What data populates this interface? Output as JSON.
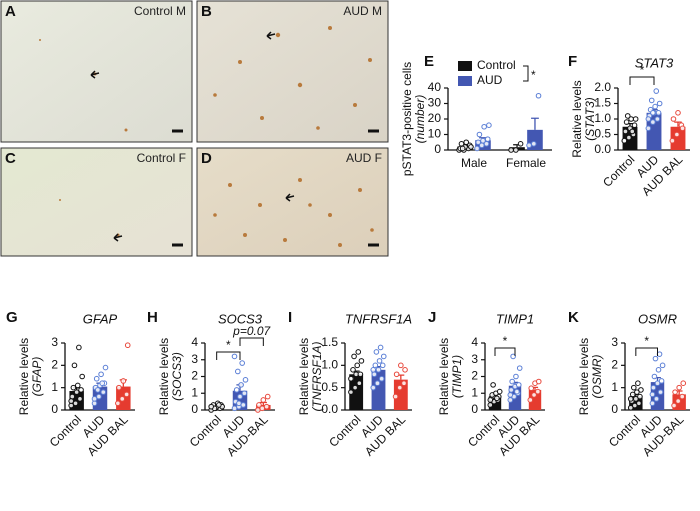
{
  "panels": [
    {
      "letter": "A",
      "label": "Control M"
    },
    {
      "letter": "B",
      "label": "AUD M"
    },
    {
      "letter": "C",
      "label": "Control F"
    },
    {
      "letter": "D",
      "label": "AUD F"
    }
  ],
  "chart_data": [
    {
      "type": "grouped_bar",
      "letter": "E",
      "ylabel": [
        "pSTAT3-positive cells",
        "(number)"
      ],
      "categories": [
        "Male",
        "Female"
      ],
      "annotations": [
        "*"
      ],
      "series": [
        {
          "name": "Control",
          "color": "#111111",
          "values": [
            2.2,
            1.8
          ],
          "errors": [
            0.8,
            1.6
          ],
          "points": [
            [
              0,
              0,
              1,
              1,
              2,
              3,
              4,
              5,
              2,
              1
            ],
            [
              0,
              0,
              4
            ]
          ]
        },
        {
          "name": "AUD",
          "color": "#4357b2",
          "values": [
            6.3,
            13
          ],
          "errors": [
            1.6,
            7.5
          ],
          "points": [
            [
              1,
              3,
              4,
              5,
              6,
              7,
              10,
              15,
              16
            ],
            [
              3,
              4,
              35
            ]
          ]
        }
      ],
      "ylim": [
        0,
        40
      ],
      "yticks": [
        0,
        10,
        20,
        30,
        40
      ]
    },
    {
      "type": "bar",
      "letter": "F",
      "title": "STAT3",
      "ylabel": [
        "Relative levels",
        "(STAT3)"
      ],
      "categories": [
        "Control",
        "AUD",
        "AUD BAL"
      ],
      "colors": [
        "#111111",
        "#4357b2",
        "#e53b2f"
      ],
      "values": [
        0.75,
        1.2,
        0.75
      ],
      "errors": [
        0.1,
        0.1,
        0.15
      ],
      "points": [
        [
          0.3,
          0.4,
          0.5,
          0.6,
          0.7,
          0.8,
          0.9,
          1.0,
          1.0,
          1.1,
          0.6,
          0.3
        ],
        [
          0.7,
          0.9,
          1.0,
          1.1,
          1.2,
          1.2,
          1.3,
          1.4,
          1.5,
          1.6,
          1.9,
          1.0,
          1.2
        ],
        [
          0.3,
          0.5,
          0.8,
          1.0,
          1.2,
          0.7
        ]
      ],
      "annotations": [
        "*"
      ],
      "ylim": [
        0,
        2
      ],
      "yticks": [
        {
          "value": 0,
          "label": "0.0"
        },
        0.5,
        {
          "value": 1,
          "label": "1.0"
        },
        1.5,
        {
          "value": 2,
          "label": "2.0"
        }
      ]
    },
    {
      "type": "bar",
      "letter": "G",
      "title": "GFAP",
      "ylabel": [
        "Relative levels",
        "(GFAP)"
      ],
      "categories": [
        "Control",
        "AUD",
        "AUD BAL"
      ],
      "colors": [
        "#111111",
        "#4357b2",
        "#e53b2f"
      ],
      "values": [
        0.85,
        1.05,
        1.05
      ],
      "errors": [
        0.15,
        0.15,
        0.3
      ],
      "points": [
        [
          0.2,
          0.3,
          0.5,
          0.6,
          0.8,
          0.9,
          1.0,
          1.1,
          1.5,
          2.0,
          2.8,
          0.4
        ],
        [
          0.3,
          0.6,
          0.8,
          1.0,
          1.1,
          1.2,
          1.4,
          1.6,
          1.9,
          0.9,
          1.2,
          0.5
        ],
        [
          0.3,
          0.5,
          0.7,
          1.0,
          1.3,
          2.9
        ]
      ],
      "annotations": [],
      "ylim": [
        0,
        3
      ],
      "yticks": [
        0,
        1,
        2,
        3
      ]
    },
    {
      "type": "bar",
      "letter": "H",
      "title": "SOCS3",
      "ylabel": [
        "Relative levels",
        "(SOCS3)"
      ],
      "categories": [
        "Control",
        "AUD",
        "AUD-BAL"
      ],
      "colors": [
        "#111111",
        "#4357b2",
        "#e53b2f"
      ],
      "values": [
        0.2,
        1.15,
        0.3
      ],
      "errors": [
        0.05,
        0.35,
        0.15
      ],
      "points": [
        [
          0,
          0.1,
          0.1,
          0.2,
          0.2,
          0.3,
          0.3,
          0.4,
          0.2,
          0.1,
          0.3,
          0.2
        ],
        [
          0.1,
          0.2,
          0.3,
          0.5,
          0.8,
          1.0,
          1.2,
          1.5,
          1.8,
          2.3,
          2.8,
          3.2,
          0.4
        ],
        [
          0,
          0.1,
          0.2,
          0.3,
          0.6,
          0.8
        ]
      ],
      "annotations": [
        "*",
        "p=0.07"
      ],
      "ylim": [
        0,
        4
      ],
      "yticks": [
        0,
        1,
        2,
        3,
        4
      ]
    },
    {
      "type": "bar",
      "letter": "I",
      "title": "TNFRSF1A",
      "ylabel": [
        "Relative levels",
        "(TNFRSF1A)"
      ],
      "categories": [
        "Control",
        "AUD",
        "AUD BAL"
      ],
      "colors": [
        "#111111",
        "#4357b2",
        "#e53b2f"
      ],
      "values": [
        0.8,
        0.9,
        0.68
      ],
      "errors": [
        0.07,
        0.07,
        0.1
      ],
      "points": [
        [
          0.4,
          0.5,
          0.6,
          0.7,
          0.8,
          0.8,
          0.9,
          1.0,
          1.1,
          1.2,
          1.3,
          0.7
        ],
        [
          0.5,
          0.6,
          0.7,
          0.8,
          0.9,
          1.0,
          1.0,
          1.1,
          1.2,
          1.3,
          1.4,
          0.9
        ],
        [
          0.3,
          0.5,
          0.6,
          0.8,
          1.0,
          0.9
        ]
      ],
      "annotations": [],
      "ylim": [
        0,
        1.5
      ],
      "yticks": [
        {
          "value": 0,
          "label": "0.0"
        },
        0.5,
        {
          "value": 1,
          "label": "1.0"
        },
        1.5
      ]
    },
    {
      "type": "bar",
      "letter": "J",
      "title": "TIMP1",
      "ylabel": [
        "Relative levels",
        "(TIMP1)"
      ],
      "categories": [
        "Control",
        "AUD",
        "AUD BAL"
      ],
      "colors": [
        "#111111",
        "#4357b2",
        "#e53b2f"
      ],
      "values": [
        0.8,
        1.45,
        1.2
      ],
      "errors": [
        0.1,
        0.2,
        0.15
      ],
      "points": [
        [
          0.3,
          0.5,
          0.6,
          0.7,
          0.8,
          0.8,
          0.9,
          1.0,
          1.1,
          1.5,
          0.7,
          0.6
        ],
        [
          0.6,
          0.8,
          1.0,
          1.2,
          1.4,
          1.5,
          1.7,
          2.0,
          2.5,
          3.2,
          1.1,
          0.9
        ],
        [
          0.6,
          0.9,
          1.1,
          1.3,
          1.6,
          1.7
        ]
      ],
      "annotations": [
        "*"
      ],
      "ylim": [
        0,
        4
      ],
      "yticks": [
        0,
        1,
        2,
        3,
        4
      ]
    },
    {
      "type": "bar",
      "letter": "K",
      "title": "OSMR",
      "ylabel": [
        "Relative levels",
        "(OSMR)"
      ],
      "categories": [
        "Control",
        "AUD",
        "AUD-BAL"
      ],
      "colors": [
        "#111111",
        "#4357b2",
        "#e53b2f"
      ],
      "values": [
        0.6,
        1.25,
        0.7
      ],
      "errors": [
        0.1,
        0.2,
        0.15
      ],
      "points": [
        [
          0.1,
          0.2,
          0.3,
          0.4,
          0.5,
          0.6,
          0.7,
          0.8,
          0.9,
          1.0,
          1.2,
          0.5
        ],
        [
          0.3,
          0.5,
          0.8,
          1.0,
          1.2,
          1.3,
          1.5,
          1.8,
          2.0,
          2.3,
          2.5,
          0.7
        ],
        [
          0.2,
          0.4,
          0.6,
          0.8,
          1.0,
          1.2
        ]
      ],
      "annotations": [
        "*"
      ],
      "ylim": [
        0,
        3
      ],
      "yticks": [
        0,
        1,
        2,
        3
      ]
    }
  ]
}
